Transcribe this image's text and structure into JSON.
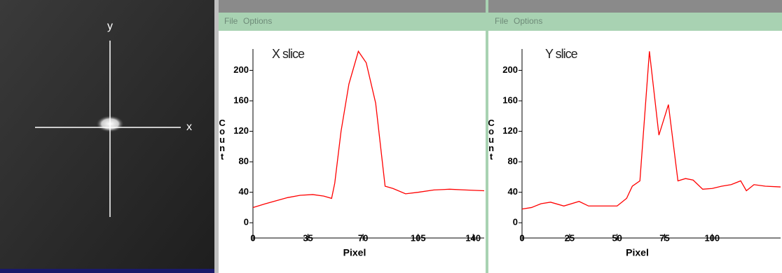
{
  "image": {
    "labels": [
      "y",
      "x"
    ]
  },
  "windows": [
    {
      "menu": [
        "File",
        "Options"
      ]
    },
    {
      "menu": [
        "File",
        "Options"
      ]
    }
  ],
  "chart_data": [
    {
      "type": "line",
      "title": "X slice",
      "xlabel": "Pixel",
      "ylabel": "Count",
      "x": [
        0,
        8,
        15,
        22,
        30,
        38,
        45,
        50,
        52,
        56,
        61,
        67,
        72,
        78,
        84,
        89,
        97,
        105,
        115,
        125,
        135,
        147
      ],
      "series": [
        {
          "color": "#ff0000",
          "values": [
            20,
            25,
            29,
            33,
            36,
            37,
            35,
            32,
            52,
            120,
            182,
            225,
            210,
            157,
            48,
            45,
            38,
            40,
            43,
            44,
            43,
            42
          ]
        }
      ],
      "xlim": [
        0,
        147
      ],
      "ylim": [
        -20,
        228
      ],
      "xticks": [
        0,
        35,
        70,
        105,
        140
      ],
      "yticks": [
        0,
        40,
        80,
        120,
        160,
        200
      ]
    },
    {
      "type": "line",
      "title": "Y slice",
      "xlabel": "Pixel",
      "ylabel": "Count",
      "x": [
        0,
        5,
        10,
        15,
        22,
        30,
        35,
        50,
        55,
        58,
        62,
        67,
        72,
        77,
        82,
        86,
        90,
        95,
        100,
        105,
        110,
        115,
        118,
        122,
        128,
        136
      ],
      "series": [
        {
          "color": "#ff0000",
          "values": [
            18,
            20,
            25,
            27,
            22,
            28,
            22,
            22,
            32,
            48,
            55,
            225,
            115,
            155,
            55,
            58,
            56,
            44,
            45,
            48,
            50,
            55,
            42,
            50,
            48,
            47
          ]
        }
      ],
      "xlim": [
        0,
        136
      ],
      "ylim": [
        -20,
        228
      ],
      "xticks": [
        0,
        25,
        50,
        75,
        100
      ],
      "yticks": [
        0,
        40,
        80,
        120,
        160,
        200
      ]
    }
  ]
}
